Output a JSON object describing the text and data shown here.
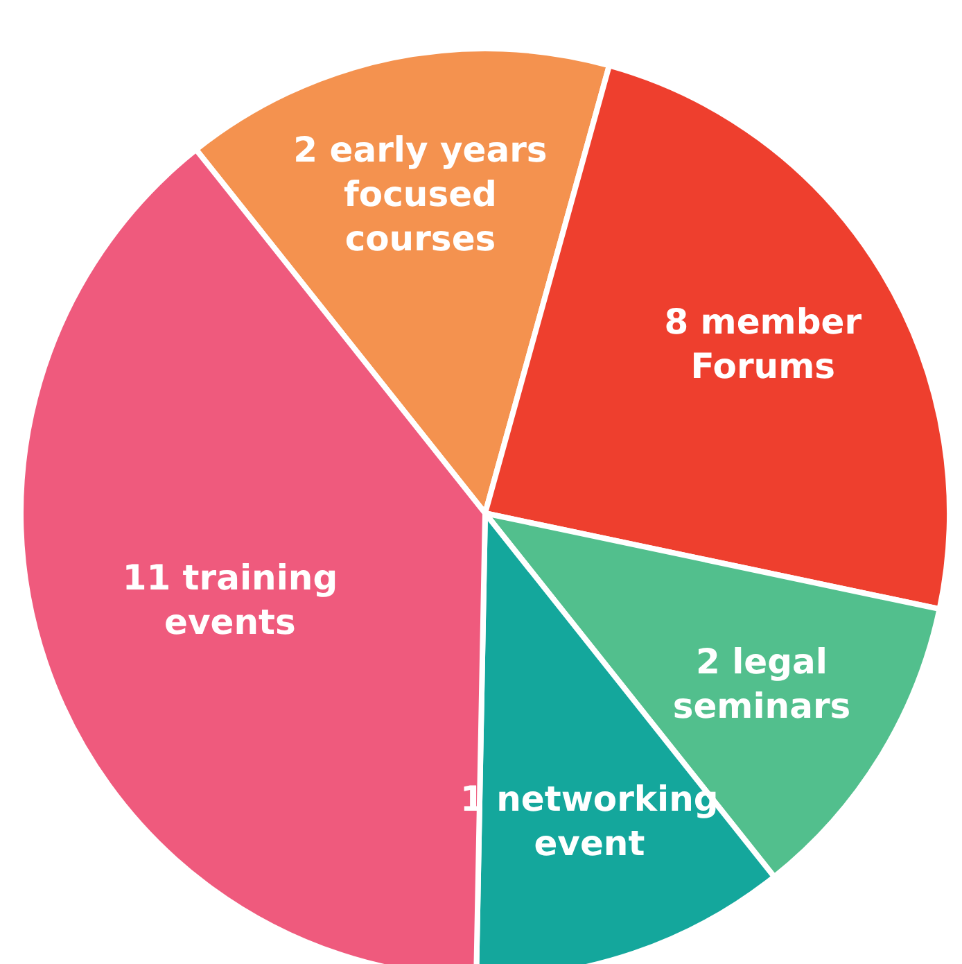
{
  "chart_data": {
    "type": "pie",
    "categories": [
      "2 early years focused courses",
      "8 member Forums",
      "2 legal seminars",
      "1 networking event",
      "11 training events"
    ],
    "values": [
      15,
      24,
      11,
      11,
      39
    ],
    "colors": [
      "#f4924f",
      "#ee3f2e",
      "#52bf8d",
      "#14a79c",
      "#ef5a7d"
    ],
    "legend": false
  }
}
